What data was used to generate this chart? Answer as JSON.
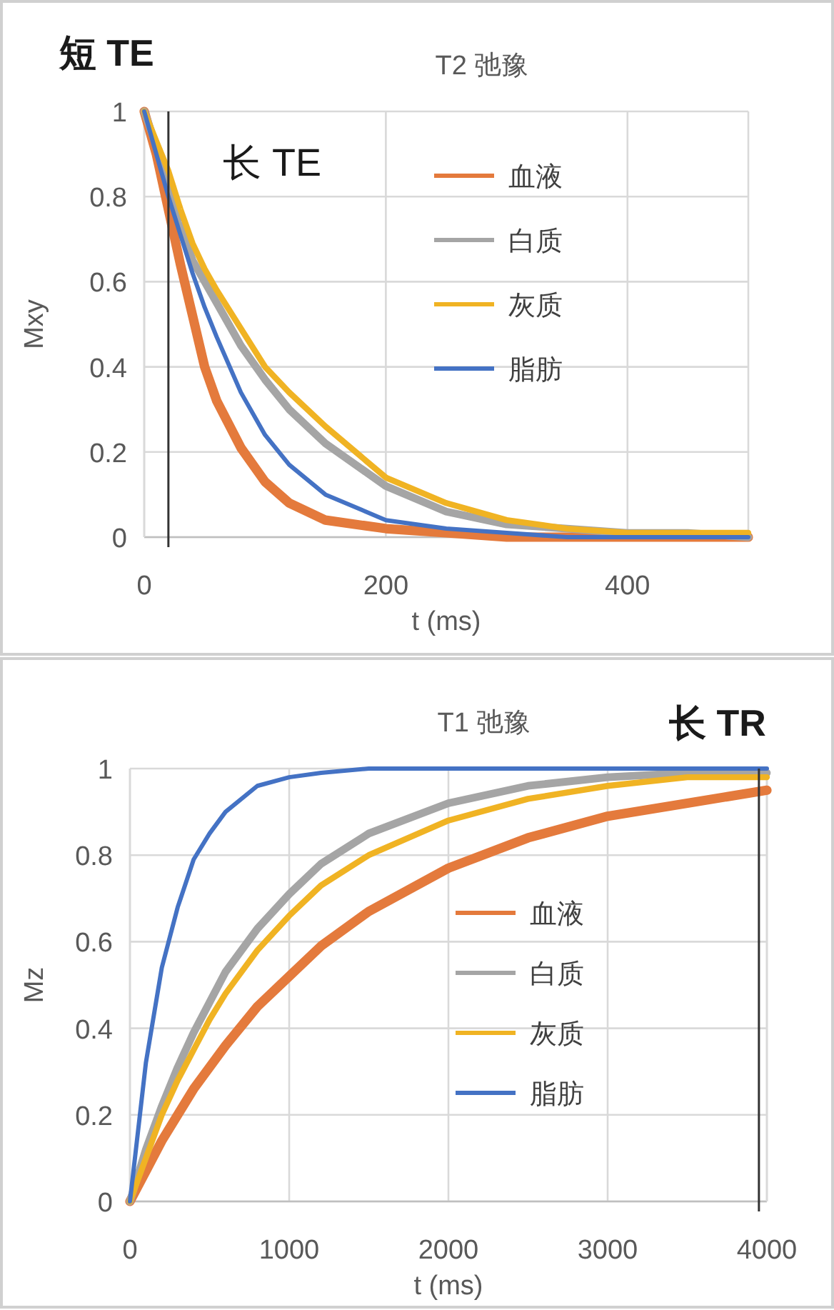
{
  "chart_data": [
    {
      "type": "line",
      "title": "T2 弛豫",
      "xlabel": "t (ms)",
      "ylabel": "Mxy",
      "x": [
        0,
        10,
        20,
        30,
        40,
        50,
        60,
        80,
        100,
        120,
        150,
        200,
        250,
        300,
        350,
        400,
        450,
        500
      ],
      "series": [
        {
          "name": "血液",
          "color": "#e47a3c",
          "values": [
            1,
            0.9,
            0.77,
            0.64,
            0.52,
            0.4,
            0.32,
            0.21,
            0.13,
            0.08,
            0.04,
            0.02,
            0.01,
            0,
            0,
            0,
            0,
            0
          ]
        },
        {
          "name": "白质",
          "color": "#a5a5a5",
          "values": [
            1,
            0.92,
            0.84,
            0.74,
            0.65,
            0.6,
            0.55,
            0.45,
            0.37,
            0.3,
            0.22,
            0.12,
            0.06,
            0.03,
            0.02,
            0.01,
            0.01,
            0
          ]
        },
        {
          "name": "灰质",
          "color": "#f0b323",
          "values": [
            1,
            0.93,
            0.86,
            0.77,
            0.69,
            0.63,
            0.58,
            0.49,
            0.4,
            0.34,
            0.26,
            0.14,
            0.08,
            0.04,
            0.02,
            0.01,
            0.01,
            0.01
          ]
        },
        {
          "name": "脂肪",
          "color": "#4472c4",
          "values": [
            1,
            0.9,
            0.8,
            0.71,
            0.62,
            0.54,
            0.47,
            0.34,
            0.24,
            0.17,
            0.1,
            0.04,
            0.02,
            0.01,
            0,
            0,
            0,
            0
          ]
        }
      ],
      "xlim": [
        0,
        500
      ],
      "xticks": [
        0,
        200,
        400
      ],
      "ylim": [
        0,
        1
      ],
      "yticks": [
        0,
        0.2,
        0.4,
        0.6,
        0.8,
        1
      ],
      "grid": true,
      "legend": "right",
      "ref_lines": [
        {
          "axis": "x",
          "value": 20,
          "label": "短 TE",
          "color": "#333333"
        }
      ],
      "annotations": [
        "长 TE"
      ]
    },
    {
      "type": "line",
      "title": "T1 弛豫",
      "xlabel": "t (ms)",
      "ylabel": "Mz",
      "x": [
        0,
        100,
        200,
        300,
        400,
        500,
        600,
        800,
        1000,
        1200,
        1500,
        2000,
        2500,
        3000,
        3500,
        4000
      ],
      "series": [
        {
          "name": "血液",
          "color": "#e47a3c",
          "values": [
            0,
            0.07,
            0.14,
            0.2,
            0.26,
            0.31,
            0.36,
            0.45,
            0.52,
            0.59,
            0.67,
            0.77,
            0.84,
            0.89,
            0.92,
            0.95
          ]
        },
        {
          "name": "白质",
          "color": "#a5a5a5",
          "values": [
            0,
            0.12,
            0.22,
            0.31,
            0.39,
            0.46,
            0.53,
            0.63,
            0.71,
            0.78,
            0.85,
            0.92,
            0.96,
            0.98,
            0.99,
            0.99
          ]
        },
        {
          "name": "灰质",
          "color": "#f0b323",
          "values": [
            0,
            0.1,
            0.2,
            0.28,
            0.35,
            0.42,
            0.48,
            0.58,
            0.66,
            0.73,
            0.8,
            0.88,
            0.93,
            0.96,
            0.98,
            0.98
          ]
        },
        {
          "name": "脂肪",
          "color": "#4472c4",
          "values": [
            0,
            0.32,
            0.54,
            0.68,
            0.79,
            0.85,
            0.9,
            0.96,
            0.98,
            0.99,
            1,
            1,
            1,
            1,
            1,
            1
          ]
        }
      ],
      "xlim": [
        0,
        4000
      ],
      "xticks": [
        0,
        1000,
        2000,
        3000,
        4000
      ],
      "ylim": [
        0,
        1
      ],
      "yticks": [
        0,
        0.2,
        0.4,
        0.6,
        0.8,
        1
      ],
      "grid": true,
      "legend": "bottom right",
      "ref_lines": [
        {
          "axis": "x",
          "value": 3950,
          "label": "长 TR",
          "color": "#333333"
        }
      ]
    }
  ]
}
